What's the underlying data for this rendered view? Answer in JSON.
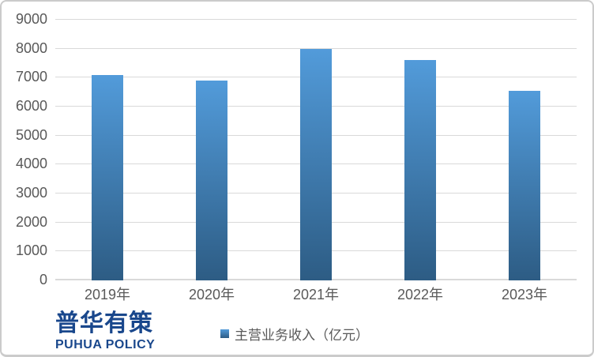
{
  "chart_data": {
    "type": "bar",
    "title": "",
    "categories": [
      "2019年",
      "2020年",
      "2021年",
      "2022年",
      "2023年"
    ],
    "series": [
      {
        "name": "主营业务收入（亿元）",
        "values": [
          7100,
          6890,
          7980,
          7620,
          6550
        ]
      }
    ],
    "xlabel": "",
    "ylabel": "",
    "ylim": [
      0,
      9000
    ],
    "ytick_step": 1000,
    "ytick_labels": [
      "0",
      "1000",
      "2000",
      "3000",
      "4000",
      "5000",
      "6000",
      "7000",
      "8000",
      "9000"
    ],
    "grid": true,
    "legend_position": "bottom"
  },
  "legend": {
    "label": "主营业务收入（亿元）"
  },
  "branding": {
    "logo_cn": "普华有策",
    "logo_en": "PUHUA POLICY"
  },
  "colors": {
    "bar_gradient_top": "#529bda",
    "bar_gradient_bottom": "#2d5c84",
    "gridline": "#d9d9d9",
    "tick_label": "#595959",
    "logo_blue": "#19478c",
    "border": "#cbcbcb"
  }
}
